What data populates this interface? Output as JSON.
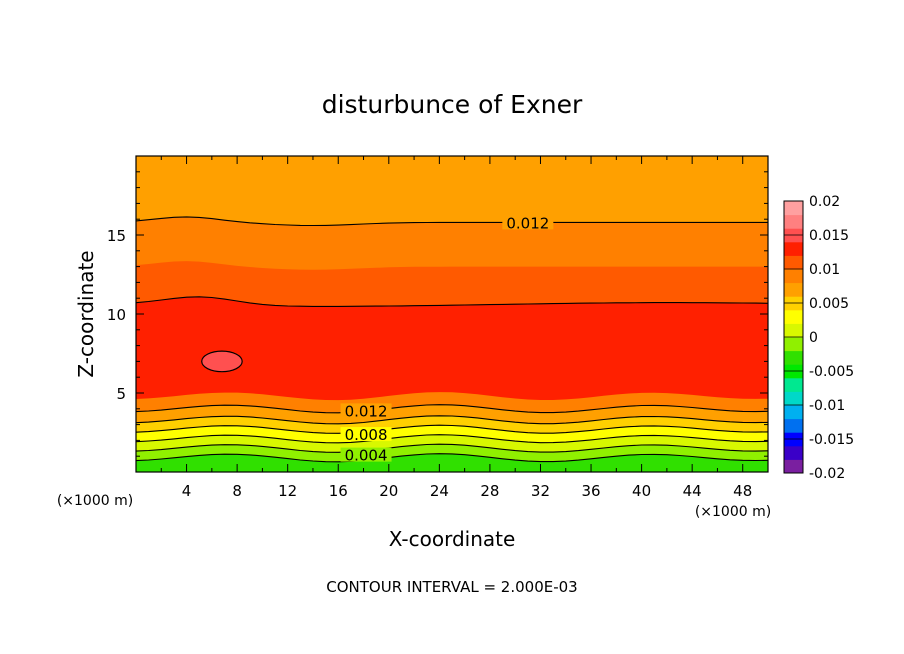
{
  "chart_data": {
    "type": "heatmap",
    "title": "disturbunce of Exner",
    "xlabel": "X-coordinate",
    "ylabel": "Z-coordinate",
    "x_unit_left": "(×1000 m)",
    "x_unit_right": "(×1000 m)",
    "footer": "CONTOUR INTERVAL = 2.000E-03",
    "xlim": [
      0,
      50
    ],
    "ylim": [
      0,
      20
    ],
    "x_ticks": [
      4,
      8,
      12,
      16,
      20,
      24,
      28,
      32,
      36,
      40,
      44,
      48
    ],
    "y_ticks": [
      5,
      10,
      15
    ],
    "grid": false,
    "contour_interval": 0.002,
    "contour_labels": [
      {
        "text": "0.012",
        "x": 31,
        "y": 15.8
      },
      {
        "text": "0.012",
        "x": 18.2,
        "y": 3.9
      },
      {
        "text": "0.008",
        "x": 18.2,
        "y": 2.4
      },
      {
        "text": "0.004",
        "x": 18.2,
        "y": 1.1
      }
    ],
    "colorbar": {
      "levels": [
        -0.02,
        -0.015,
        -0.01,
        -0.005,
        0,
        0.005,
        0.01,
        0.015,
        0.02
      ],
      "tick_labels": [
        "-0.02",
        "-0.015",
        "-0.01",
        "-0.005",
        "0",
        "0.005",
        "0.01",
        "0.015",
        "0.02"
      ],
      "colors": [
        "#7a1fa0",
        "#3a00c8",
        "#0000ff",
        "#0070f0",
        "#00b0f0",
        "#00d8c8",
        "#00e890",
        "#00e800",
        "#30e000",
        "#90f000",
        "#d8f800",
        "#ffff00",
        "#ffd000",
        "#ffa000",
        "#ff8000",
        "#ff5a00",
        "#ff2000",
        "#ff5050",
        "#ff8080",
        "#ffa0a0"
      ]
    },
    "bands": [
      {
        "upper": 0.9,
        "value": 0.003,
        "color": "#30e000"
      },
      {
        "upper": 1.5,
        "value": 0.005,
        "color": "#90f000"
      },
      {
        "upper": 2.1,
        "value": 0.007,
        "color": "#d8f800"
      },
      {
        "upper": 2.7,
        "value": 0.009,
        "color": "#ffff00"
      },
      {
        "upper": 3.3,
        "value": 0.011,
        "color": "#ffd000"
      },
      {
        "upper": 4.0,
        "value": 0.013,
        "color": "#ffa000"
      },
      {
        "upper": 4.8,
        "value": 0.015,
        "color": "#ff8000"
      },
      {
        "upper": 10.6,
        "value": 0.017,
        "color": "#ff2000"
      },
      {
        "upper": 13.0,
        "value": 0.015,
        "color": "#ff5a00"
      },
      {
        "upper": 15.8,
        "value": 0.013,
        "color": "#ff8000"
      },
      {
        "upper": 18.3,
        "value": 0.011,
        "color": "#ffa000"
      },
      {
        "upper": 20.0,
        "value": 0.009,
        "color": "#ffa000"
      }
    ],
    "closed_contour": {
      "cx": 6.8,
      "cy": 7.0,
      "rx": 1.6,
      "ry": 0.65,
      "color": "#ff5050"
    }
  }
}
